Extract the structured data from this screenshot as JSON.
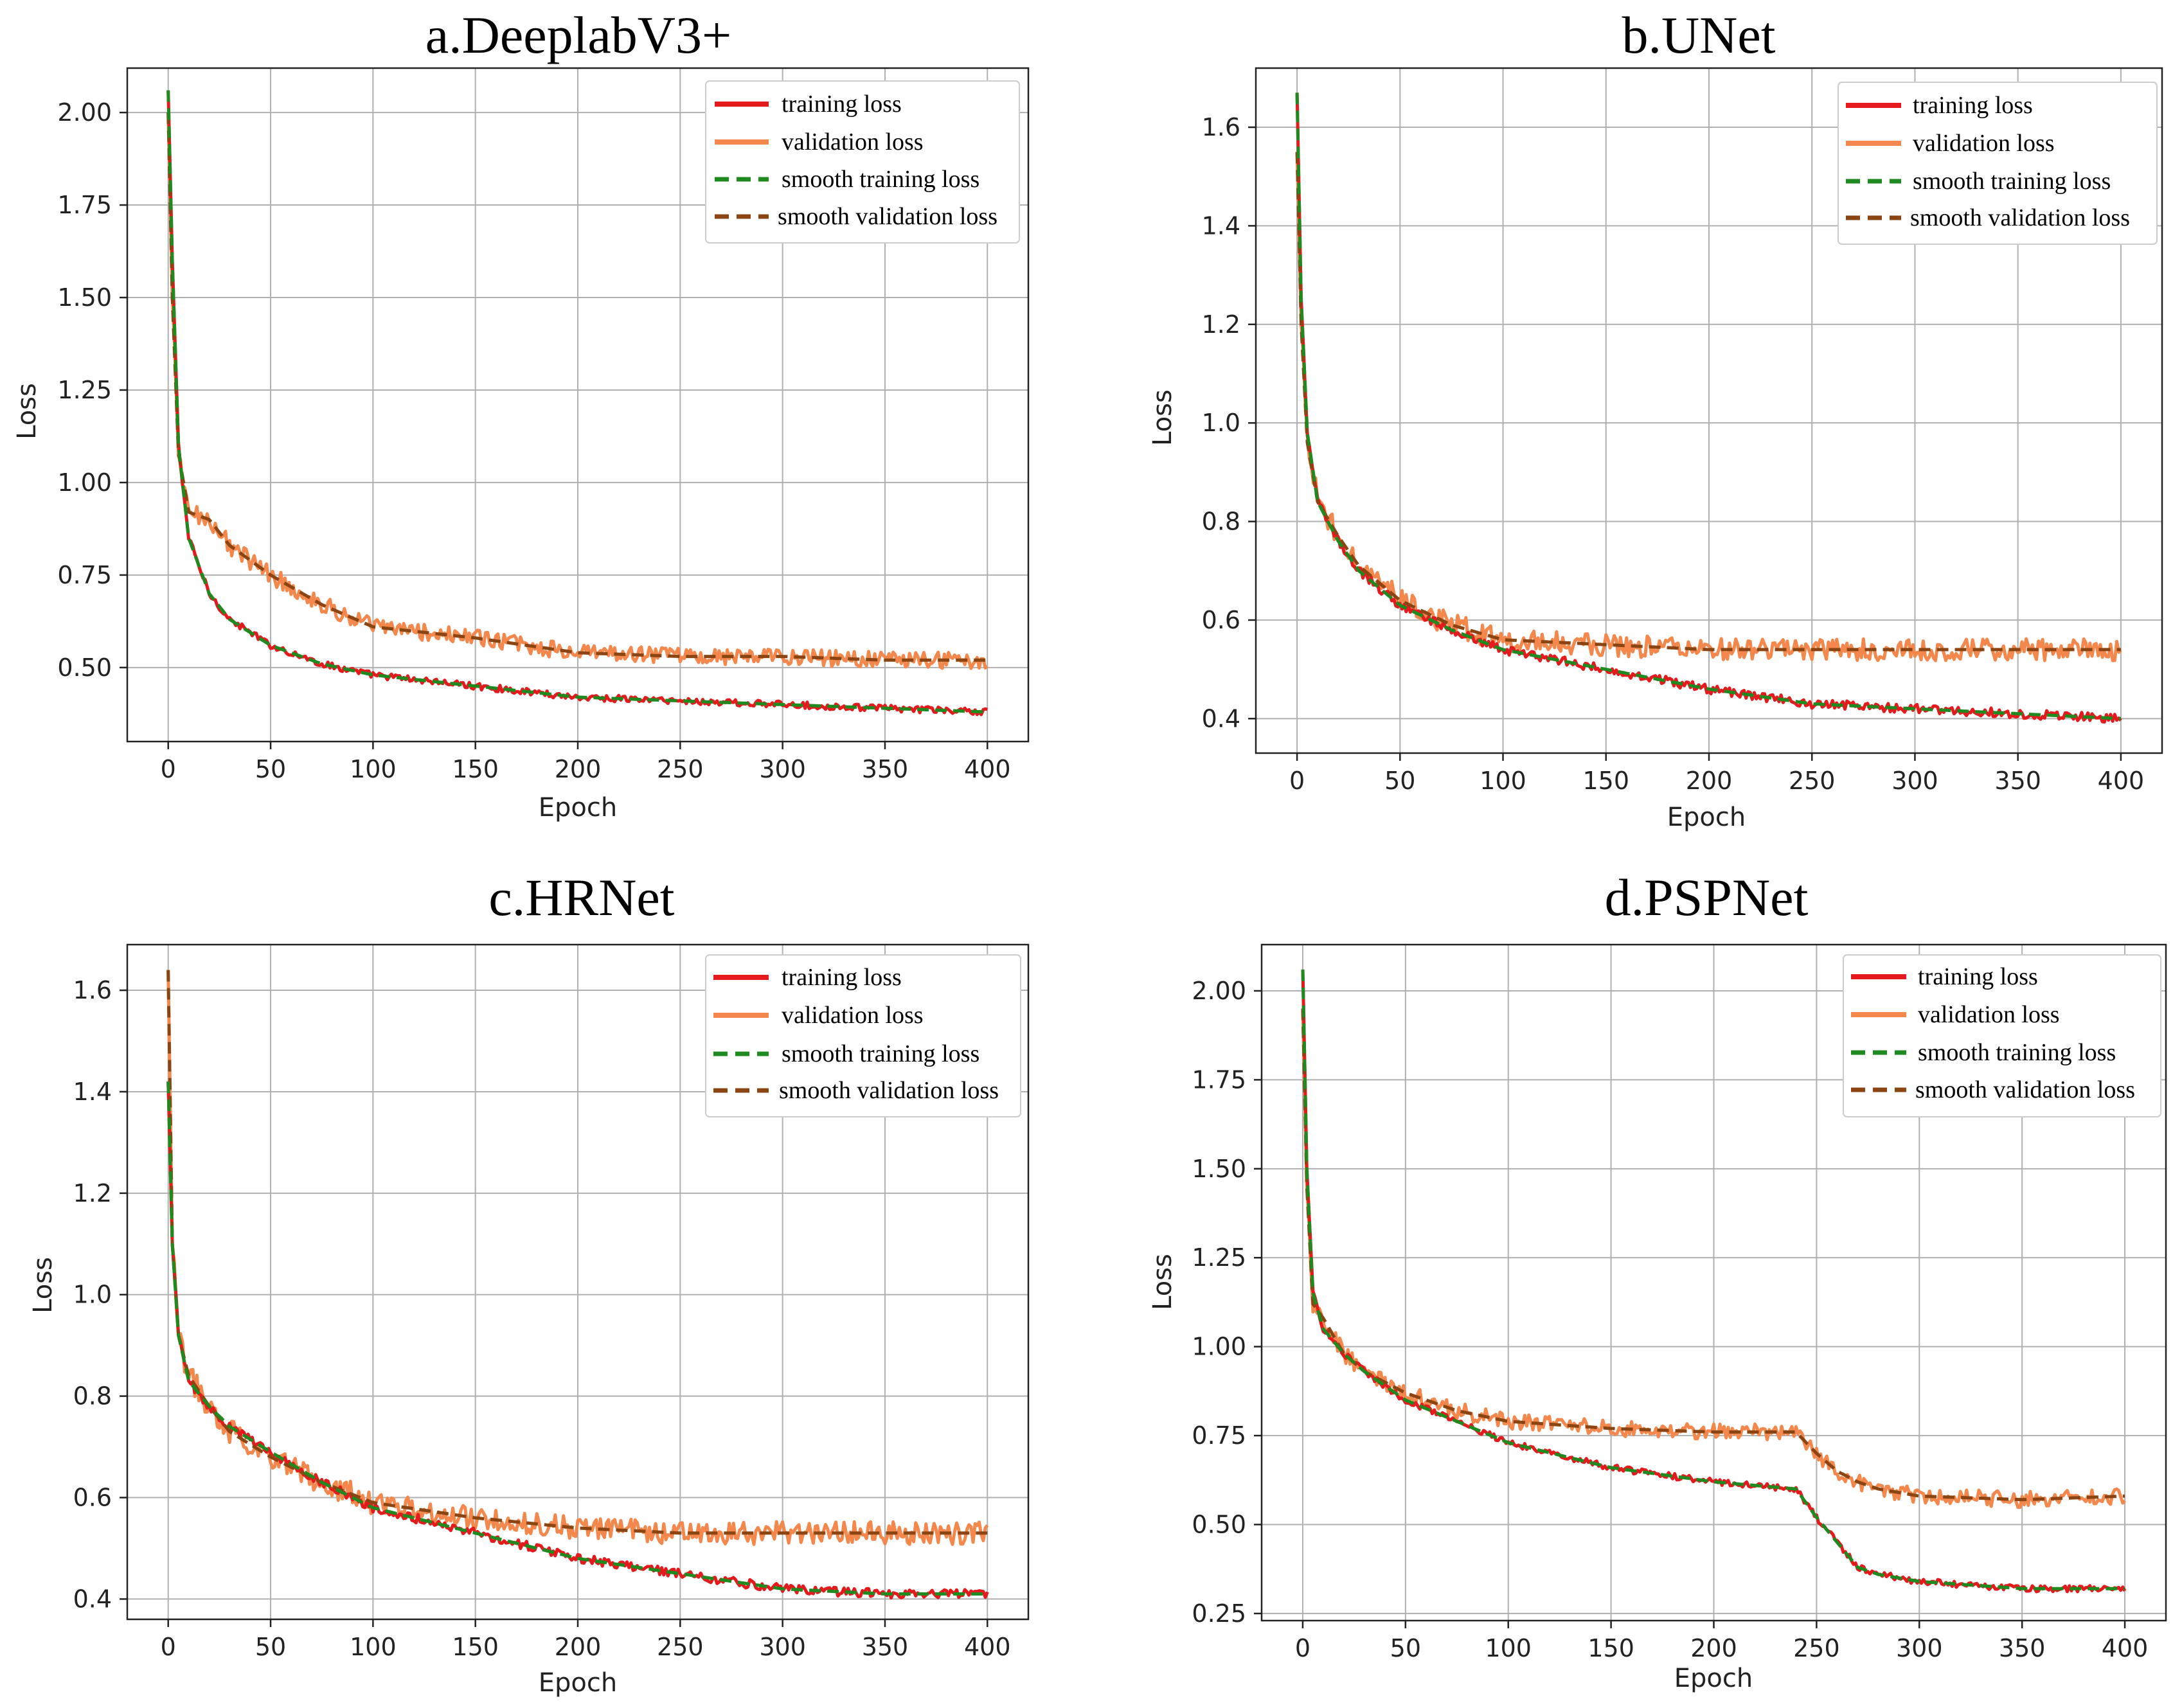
{
  "chart_data": [
    {
      "type": "line",
      "id": "deeplab",
      "title": "a.DeeplabV3+",
      "xlabel": "Epoch",
      "ylabel": "Loss",
      "xlim": [
        -20,
        420
      ],
      "ylim": [
        0.3,
        2.12
      ],
      "xticks": [
        0,
        50,
        100,
        150,
        200,
        250,
        300,
        350,
        400
      ],
      "yticks": [
        0.5,
        0.75,
        1.0,
        1.25,
        1.5,
        1.75,
        2.0
      ],
      "ytick_labels": [
        "0.50",
        "0.75",
        "1.00",
        "1.25",
        "1.50",
        "1.75",
        "2.00"
      ],
      "grid": true,
      "legend": {
        "position": "top-right",
        "entries": [
          "training loss",
          "validation loss",
          "smooth training loss",
          "smooth validation loss"
        ]
      },
      "series": [
        {
          "name": "training loss",
          "x": [
            0,
            2,
            5,
            10,
            20,
            30,
            50,
            75,
            100,
            150,
            200,
            250,
            300,
            350,
            400
          ],
          "values": [
            2.06,
            1.6,
            1.1,
            0.85,
            0.7,
            0.63,
            0.56,
            0.51,
            0.48,
            0.45,
            0.42,
            0.41,
            0.4,
            0.39,
            0.38
          ]
        },
        {
          "name": "validation loss",
          "x": [
            0,
            2,
            5,
            10,
            20,
            30,
            50,
            75,
            100,
            150,
            200,
            250,
            300,
            350,
            400
          ],
          "values": [
            2.0,
            1.5,
            1.08,
            0.92,
            0.9,
            0.83,
            0.75,
            0.67,
            0.61,
            0.58,
            0.54,
            0.53,
            0.53,
            0.52,
            0.52
          ]
        }
      ]
    },
    {
      "type": "line",
      "id": "unet",
      "title": "b.UNet",
      "xlabel": "Epoch",
      "ylabel": "Loss",
      "xlim": [
        -20,
        420
      ],
      "ylim": [
        0.33,
        1.72
      ],
      "xticks": [
        0,
        50,
        100,
        150,
        200,
        250,
        300,
        350,
        400
      ],
      "yticks": [
        0.4,
        0.6,
        0.8,
        1.0,
        1.2,
        1.4,
        1.6
      ],
      "ytick_labels": [
        "0.4",
        "0.6",
        "0.8",
        "1.0",
        "1.2",
        "1.4",
        "1.6"
      ],
      "grid": true,
      "legend": {
        "position": "top-right",
        "entries": [
          "training loss",
          "validation loss",
          "smooth training loss",
          "smooth validation loss"
        ]
      },
      "series": [
        {
          "name": "training loss",
          "x": [
            0,
            2,
            5,
            10,
            20,
            30,
            50,
            75,
            100,
            150,
            200,
            250,
            300,
            350,
            400
          ],
          "values": [
            1.67,
            1.25,
            0.98,
            0.84,
            0.76,
            0.7,
            0.63,
            0.58,
            0.54,
            0.5,
            0.46,
            0.43,
            0.42,
            0.41,
            0.4
          ]
        },
        {
          "name": "validation loss",
          "x": [
            0,
            2,
            5,
            10,
            20,
            30,
            50,
            75,
            100,
            150,
            200,
            250,
            300,
            350,
            400
          ],
          "values": [
            1.55,
            1.2,
            0.96,
            0.84,
            0.77,
            0.71,
            0.64,
            0.59,
            0.56,
            0.55,
            0.54,
            0.54,
            0.54,
            0.54,
            0.54
          ]
        }
      ]
    },
    {
      "type": "line",
      "id": "hrnet",
      "title": "c.HRNet",
      "xlabel": "Epoch",
      "ylabel": "Loss",
      "xlim": [
        -20,
        420
      ],
      "ylim": [
        0.36,
        1.69
      ],
      "xticks": [
        0,
        50,
        100,
        150,
        200,
        250,
        300,
        350,
        400
      ],
      "yticks": [
        0.4,
        0.6,
        0.8,
        1.0,
        1.2,
        1.4,
        1.6
      ],
      "ytick_labels": [
        "0.4",
        "0.6",
        "0.8",
        "1.0",
        "1.2",
        "1.4",
        "1.6"
      ],
      "grid": true,
      "legend": {
        "position": "top-right",
        "entries": [
          "training loss",
          "validation loss",
          "smooth training loss",
          "smooth validation loss"
        ]
      },
      "series": [
        {
          "name": "training loss",
          "x": [
            0,
            2,
            5,
            10,
            20,
            30,
            50,
            75,
            100,
            150,
            200,
            250,
            300,
            350,
            400
          ],
          "values": [
            1.42,
            1.1,
            0.92,
            0.83,
            0.78,
            0.74,
            0.69,
            0.63,
            0.58,
            0.53,
            0.48,
            0.45,
            0.42,
            0.41,
            0.41
          ]
        },
        {
          "name": "validation loss",
          "x": [
            0,
            2,
            5,
            10,
            20,
            30,
            50,
            75,
            100,
            150,
            200,
            250,
            300,
            350,
            400
          ],
          "values": [
            1.64,
            1.1,
            0.92,
            0.84,
            0.78,
            0.73,
            0.68,
            0.63,
            0.59,
            0.56,
            0.54,
            0.53,
            0.53,
            0.53,
            0.53
          ]
        }
      ]
    },
    {
      "type": "line",
      "id": "pspnet",
      "title": "d.PSPNet",
      "xlabel": "Epoch",
      "ylabel": "Loss",
      "xlim": [
        -20,
        420
      ],
      "ylim": [
        0.23,
        2.13
      ],
      "xticks": [
        0,
        50,
        100,
        150,
        200,
        250,
        300,
        350,
        400
      ],
      "yticks": [
        0.25,
        0.5,
        0.75,
        1.0,
        1.25,
        1.5,
        1.75,
        2.0
      ],
      "ytick_labels": [
        "0.25",
        "0.50",
        "0.75",
        "1.00",
        "1.25",
        "1.50",
        "1.75",
        "2.00"
      ],
      "grid": true,
      "legend": {
        "position": "top-right",
        "entries": [
          "training loss",
          "validation loss",
          "smooth training loss",
          "smooth validation loss"
        ]
      },
      "series": [
        {
          "name": "training loss",
          "x": [
            0,
            2,
            5,
            10,
            20,
            30,
            50,
            75,
            100,
            150,
            200,
            240,
            250,
            260,
            270,
            280,
            300,
            350,
            400
          ],
          "values": [
            2.06,
            1.5,
            1.15,
            1.05,
            0.98,
            0.93,
            0.85,
            0.79,
            0.73,
            0.66,
            0.62,
            0.6,
            0.52,
            0.45,
            0.38,
            0.36,
            0.34,
            0.32,
            0.32
          ]
        },
        {
          "name": "validation loss",
          "x": [
            0,
            2,
            5,
            10,
            20,
            30,
            50,
            75,
            100,
            150,
            200,
            240,
            250,
            260,
            270,
            280,
            300,
            350,
            400
          ],
          "values": [
            1.95,
            1.45,
            1.12,
            1.08,
            0.98,
            0.93,
            0.87,
            0.82,
            0.79,
            0.77,
            0.76,
            0.76,
            0.7,
            0.65,
            0.62,
            0.6,
            0.58,
            0.57,
            0.58
          ]
        }
      ]
    }
  ]
}
